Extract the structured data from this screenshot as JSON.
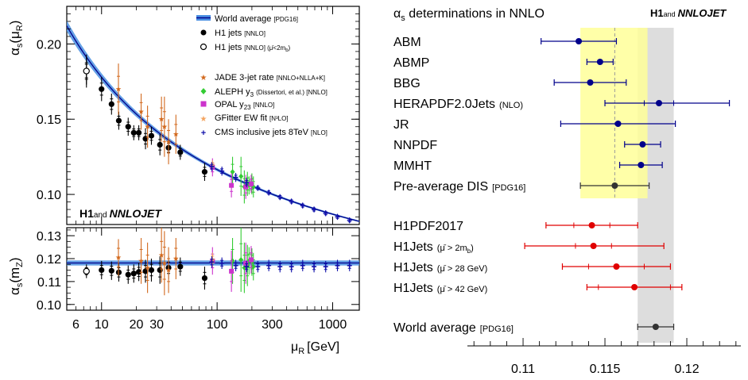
{
  "colors": {
    "black": "#000000",
    "blue": "#00008B",
    "band_blue": "#4A90E2",
    "red": "#E00000",
    "jade": "#D2691E",
    "aleph": "#33CC33",
    "opal": "#CC33CC",
    "gfitter": "#F4A460",
    "cms": "#1010AA",
    "yellow_band": "#FFFF99",
    "grey_band": "#DDDDDD"
  },
  "left_panel": {
    "y_label_top": "αs (μR)",
    "y_label_top_main": "α",
    "y_label_top_sub": "s",
    "y_label_top_arg": "(μ",
    "y_label_top_arg_sub": "R",
    "y_label_top_close": ")",
    "y_label_bottom_main": "α",
    "y_label_bottom_sub": "s",
    "y_label_bottom_arg": "(m",
    "y_label_bottom_arg_sub": "Z",
    "y_label_bottom_close": ")",
    "x_label_main": "μ",
    "x_label_sub": "R",
    "x_label_unit": "[GeV]",
    "x_ticks": [
      "6",
      "10",
      "20",
      "30",
      "100",
      "300",
      "1000"
    ],
    "y_ticks_top": [
      "0.20",
      "0.15",
      "0.10"
    ],
    "y_ticks_bottom": [
      "0.13",
      "0.12",
      "0.11",
      "0.10"
    ],
    "h1_logo_a": "H1",
    "h1_logo_and": "and",
    "h1_logo_b": "NNLOJET",
    "legend": [
      {
        "key": "world",
        "label": "World average",
        "tag": "[PDG16]"
      },
      {
        "key": "h1",
        "label": "H1 jets",
        "tag": "[NNLO]"
      },
      {
        "key": "h1open",
        "label": "H1 jets",
        "tag": "[NNLO]  (μ̄<2m",
        "tag_sub": "b",
        "tag_close": ")"
      },
      {
        "key": "jade",
        "label": "JADE 3-jet rate",
        "tag": "[NNLO+NLLA+K]"
      },
      {
        "key": "aleph",
        "label": "ALEPH y",
        "label_sub": "3",
        "tag": "(Dissertori, et al.) [NNLO]"
      },
      {
        "key": "opal",
        "label": "OPAL y",
        "label_sub": "23",
        "tag": "[NNLO]"
      },
      {
        "key": "gfitter",
        "label": "GFitter EW fit",
        "tag": "[N³LO]"
      },
      {
        "key": "cms",
        "label": "CMS inclusive jets 8TeV",
        "tag": "[NLO]"
      }
    ]
  },
  "right_panel": {
    "title_main": "α",
    "title_sub": "s",
    "title_rest": " determinations in NNLO",
    "logo_a": "H1",
    "logo_and": "and",
    "logo_b": "NNLOJET",
    "x_ticks": [
      "0.11",
      "0.115",
      "0.12"
    ],
    "rows": [
      {
        "label": "ABM",
        "tag": ""
      },
      {
        "label": "ABMP",
        "tag": ""
      },
      {
        "label": "BBG",
        "tag": ""
      },
      {
        "label": "HERAPDF2.0Jets",
        "tag": "(NLO)"
      },
      {
        "label": "JR",
        "tag": ""
      },
      {
        "label": "NNPDF",
        "tag": ""
      },
      {
        "label": "MMHT",
        "tag": ""
      },
      {
        "label": "Pre-average DIS",
        "tag": "[PDG16]"
      },
      {
        "label": "H1PDF2017",
        "tag": ""
      },
      {
        "label": "H1Jets",
        "tag": "(μ̄ > 2m",
        "tag_sub": "b",
        "tag_close": ")"
      },
      {
        "label": "H1Jets",
        "tag": "(μ̄ > 28 GeV)"
      },
      {
        "label": "H1Jets",
        "tag": "(μ̄ > 42 GeV)"
      },
      {
        "label": "World average",
        "tag": "[PDG16]"
      }
    ]
  },
  "chart_data": [
    {
      "type": "scatter",
      "panel": "running alpha_s (top)",
      "x_scale": "log",
      "xlim": [
        5,
        1700
      ],
      "ylim": [
        0.08,
        0.225
      ],
      "world_average_alpha_s_mz": 0.1181,
      "series": [
        {
          "name": "H1 jets",
          "marker": "filled-circle",
          "color": "#000000",
          "x": [
            7.4,
            10.0,
            12.2,
            14.1,
            17.0,
            19.0,
            21.0,
            24.0,
            27.0,
            32.0,
            38.0,
            48.0,
            78.0
          ],
          "y": [
            0.182,
            0.17,
            0.16,
            0.149,
            0.145,
            0.141,
            0.141,
            0.137,
            0.139,
            0.133,
            0.131,
            0.128,
            0.115
          ],
          "yerr": [
            0.011,
            0.008,
            0.007,
            0.006,
            0.006,
            0.005,
            0.005,
            0.007,
            0.006,
            0.007,
            0.006,
            0.005,
            0.006
          ]
        },
        {
          "name": "H1 jets (μ̄<2mb)",
          "marker": "open-circle",
          "color": "#000000",
          "x": [
            7.4
          ],
          "y": [
            0.182
          ],
          "yerr": [
            0.009
          ]
        },
        {
          "name": "JADE 3-jet rate",
          "marker": "star",
          "color": "#D2691E",
          "x": [
            14.0,
            22.0,
            25.0,
            33.0,
            35.0,
            38.0,
            44.0
          ],
          "y": [
            0.17,
            0.155,
            0.145,
            0.15,
            0.145,
            0.135,
            0.14
          ],
          "yerr": [
            0.017,
            0.012,
            0.014,
            0.015,
            0.02,
            0.015,
            0.013
          ]
        },
        {
          "name": "ALEPH y3",
          "marker": "diamond",
          "color": "#33CC33",
          "x": [
            136,
            161,
            172,
            183,
            189,
            200,
            206
          ],
          "y": [
            0.115,
            0.112,
            0.105,
            0.107,
            0.106,
            0.107,
            0.105
          ],
          "yerr": [
            0.01,
            0.013,
            0.011,
            0.008,
            0.006,
            0.007,
            0.007
          ]
        },
        {
          "name": "OPAL y23",
          "marker": "square",
          "color": "#CC33CC",
          "x": [
            91.2,
            133.0,
            177.0,
            197.0
          ],
          "y": [
            0.118,
            0.106,
            0.105,
            0.107
          ],
          "yerr": [
            0.006,
            0.008,
            0.008,
            0.006
          ]
        },
        {
          "name": "GFitter EW fit",
          "marker": "star",
          "color": "#F4A460",
          "x": [
            91.2
          ],
          "y": [
            0.1196
          ],
          "yerr": [
            0.003
          ]
        },
        {
          "name": "CMS inclusive jets 8TeV",
          "marker": "cross",
          "color": "#1010AA",
          "x": [
            90,
            110,
            145,
            180,
            225,
            280,
            350,
            440,
            550,
            690,
            870,
            1100,
            1400
          ],
          "y": [
            0.1185,
            0.1155,
            0.1113,
            0.1078,
            0.1043,
            0.1012,
            0.0982,
            0.0953,
            0.0926,
            0.09,
            0.0875,
            0.0851,
            0.0828
          ],
          "yerr": [
            0.003,
            0.003,
            0.003,
            0.003,
            0.002,
            0.002,
            0.002,
            0.002,
            0.002,
            0.002,
            0.002,
            0.002,
            0.002
          ]
        }
      ]
    },
    {
      "type": "scatter",
      "panel": "alpha_s(mZ) (bottom)",
      "x_scale": "log",
      "xlim": [
        5,
        1700
      ],
      "ylim": [
        0.0975,
        0.1335
      ],
      "world_average": 0.1181,
      "series": [
        {
          "name": "H1 jets",
          "color": "#000000",
          "x": [
            10.0,
            12.2,
            14.1,
            17.0,
            19.0,
            21.0,
            24.0,
            27.0,
            32.0,
            38.0,
            48.0,
            78.0
          ],
          "y": [
            0.115,
            0.1147,
            0.114,
            0.113,
            0.1135,
            0.1142,
            0.1145,
            0.115,
            0.115,
            0.116,
            0.1165,
            0.1115
          ],
          "yerr": [
            0.004,
            0.004,
            0.004,
            0.004,
            0.004,
            0.004,
            0.005,
            0.005,
            0.006,
            0.005,
            0.004,
            0.005
          ]
        },
        {
          "name": "H1 jets (μ̄<2mb)",
          "color": "#000000",
          "marker": "open-circle",
          "x": [
            7.4
          ],
          "y": [
            0.1145
          ],
          "yerr": [
            0.003
          ]
        },
        {
          "name": "JADE 3-jet rate",
          "color": "#D2691E",
          "x": [
            14.0,
            22.0,
            25.0,
            33.0,
            35.0,
            38.0,
            44.0
          ],
          "y": [
            0.1205,
            0.119,
            0.116,
            0.1215,
            0.118,
            0.115,
            0.12
          ],
          "yerr": [
            0.008,
            0.01,
            0.011,
            0.012,
            0.014,
            0.01,
            0.009
          ]
        },
        {
          "name": "ALEPH y3",
          "color": "#33CC33",
          "x": [
            136,
            161,
            172,
            183,
            189,
            200,
            206
          ],
          "y": [
            0.119,
            0.1195,
            0.116,
            0.117,
            0.119,
            0.1185,
            0.1165
          ],
          "yerr": [
            0.01,
            0.014,
            0.011,
            0.009,
            0.006,
            0.006,
            0.006
          ]
        },
        {
          "name": "OPAL y23",
          "color": "#CC33CC",
          "x": [
            91.2,
            133.0,
            177.0,
            197.0
          ],
          "y": [
            0.119,
            0.1145,
            0.118,
            0.1195
          ],
          "yerr": [
            0.006,
            0.009,
            0.009,
            0.006
          ]
        },
        {
          "name": "GFitter EW fit",
          "color": "#F4A460",
          "x": [
            91.2
          ],
          "y": [
            0.1196
          ],
          "yerr": [
            0.003
          ]
        },
        {
          "name": "CMS inclusive jets 8TeV",
          "color": "#1010AA",
          "x": [
            90,
            110,
            145,
            180,
            225,
            280,
            350,
            440,
            550,
            690,
            870,
            1100,
            1400
          ],
          "y": [
            0.1185,
            0.118,
            0.117,
            0.1165,
            0.1165,
            0.117,
            0.1165,
            0.1165,
            0.117,
            0.1165,
            0.1165,
            0.117,
            0.117
          ],
          "yerr": [
            0.0025,
            0.0025,
            0.0025,
            0.0025,
            0.0025,
            0.0025,
            0.0025,
            0.0025,
            0.0025,
            0.0025,
            0.0025,
            0.0025,
            0.0025
          ]
        }
      ]
    },
    {
      "type": "scatter",
      "panel": "alpha_s determinations in NNLO (right)",
      "xlim": [
        0.1066,
        0.1233
      ],
      "world_average_band": [
        0.117,
        0.1192
      ],
      "dis_band": [
        0.1135,
        0.1176
      ],
      "dis_central": 0.1156,
      "points": [
        {
          "label": "ABM",
          "value": 0.1134,
          "err_low": 0.0023,
          "err_high": 0.0023,
          "inner": 0,
          "color": "#00008B"
        },
        {
          "label": "ABMP",
          "value": 0.1147,
          "err_low": 0.0008,
          "err_high": 0.0008,
          "inner": 0,
          "color": "#00008B"
        },
        {
          "label": "BBG",
          "value": 0.1141,
          "err_low": 0.0022,
          "err_high": 0.0022,
          "inner": 0,
          "color": "#00008B"
        },
        {
          "label": "HERAPDF2.0Jets (NLO)",
          "value": 0.1183,
          "err_low": 0.0033,
          "err_high": 0.0043,
          "inner": 0.0009,
          "color": "#00008B"
        },
        {
          "label": "JR",
          "value": 0.1158,
          "err_low": 0.0035,
          "err_high": 0.0035,
          "inner": 0,
          "color": "#00008B"
        },
        {
          "label": "NNPDF",
          "value": 0.1173,
          "err_low": 0.0011,
          "err_high": 0.0011,
          "inner": 0,
          "color": "#00008B"
        },
        {
          "label": "MMHT",
          "value": 0.1172,
          "err_low": 0.0013,
          "err_high": 0.0013,
          "inner": 0,
          "color": "#00008B"
        },
        {
          "label": "Pre-average DIS [PDG16]",
          "value": 0.1156,
          "err_low": 0.0021,
          "err_high": 0.0021,
          "inner": 0,
          "color": "#333333"
        },
        {
          "label": "H1PDF2017",
          "value": 0.1142,
          "err_low": 0.0028,
          "err_high": 0.0028,
          "inner": 0.0011,
          "color": "#E00000"
        },
        {
          "label": "H1Jets (μ̄ > 2mb)",
          "value": 0.1143,
          "err_low": 0.0042,
          "err_high": 0.0043,
          "inner": 0.0011,
          "color": "#E00000"
        },
        {
          "label": "H1Jets (μ̄ > 28 GeV)",
          "value": 0.1157,
          "err_low": 0.0033,
          "err_high": 0.0033,
          "inner": 0.0017,
          "color": "#E00000"
        },
        {
          "label": "H1Jets (μ̄ > 42 GeV)",
          "value": 0.1168,
          "err_low": 0.0029,
          "err_high": 0.0029,
          "inner": 0.0022,
          "color": "#E00000"
        },
        {
          "label": "World average [PDG16]",
          "value": 0.1181,
          "err_low": 0.0011,
          "err_high": 0.0011,
          "inner": 0,
          "color": "#333333"
        }
      ]
    }
  ]
}
